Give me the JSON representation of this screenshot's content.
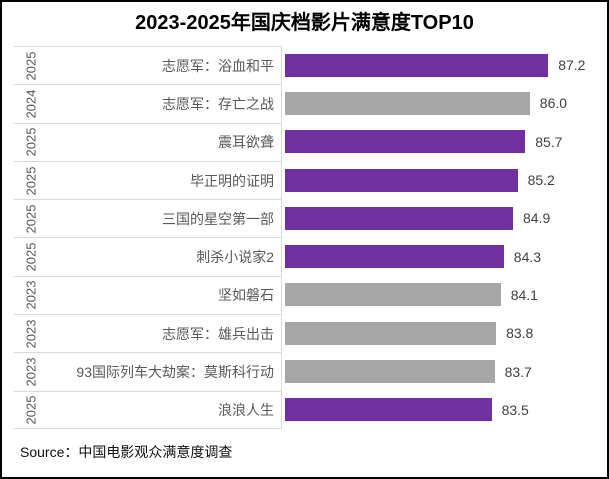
{
  "chart": {
    "title": "2023-2025年国庆档影片满意度TOP10",
    "source": "Source：中国电影观众满意度调查"
  },
  "chart_data": {
    "type": "bar",
    "orientation": "horizontal",
    "title": "2023-2025年国庆档影片满意度TOP10",
    "xlim": [
      70,
      88.6
    ],
    "grid": "category-separator-lines-only",
    "legend": "none",
    "palette": {
      "accent": "#7030A0",
      "muted": "#A6A6A6"
    },
    "value_label_color": "#404040",
    "axis_label_color": "#595959",
    "gridline_color": "#D9D9D9",
    "source": "Source：中国电影观众满意度调查",
    "rows": [
      {
        "year": "2025",
        "name": "志愿军：浴血和平",
        "value": 87.2,
        "value_label": "87.2",
        "color": "accent"
      },
      {
        "year": "2024",
        "name": "志愿军：存亡之战",
        "value": 86.0,
        "value_label": "86.0",
        "color": "muted"
      },
      {
        "year": "2025",
        "name": "震耳欲聋",
        "value": 85.7,
        "value_label": "85.7",
        "color": "accent"
      },
      {
        "year": "2025",
        "name": "毕正明的证明",
        "value": 85.2,
        "value_label": "85.2",
        "color": "accent"
      },
      {
        "year": "2025",
        "name": "三国的星空第一部",
        "value": 84.9,
        "value_label": "84.9",
        "color": "accent"
      },
      {
        "year": "2025",
        "name": "刺杀小说家2",
        "value": 84.3,
        "value_label": "84.3",
        "color": "accent"
      },
      {
        "year": "2023",
        "name": "坚如磐石",
        "value": 84.1,
        "value_label": "84.1",
        "color": "muted"
      },
      {
        "year": "2023",
        "name": "志愿军：雄兵出击",
        "value": 83.8,
        "value_label": "83.8",
        "color": "muted"
      },
      {
        "year": "2023",
        "name": "93国际列车大劫案：莫斯科行动",
        "value": 83.7,
        "value_label": "83.7",
        "color": "muted"
      },
      {
        "year": "2025",
        "name": "浪浪人生",
        "value": 83.5,
        "value_label": "83.5",
        "color": "accent"
      }
    ]
  }
}
